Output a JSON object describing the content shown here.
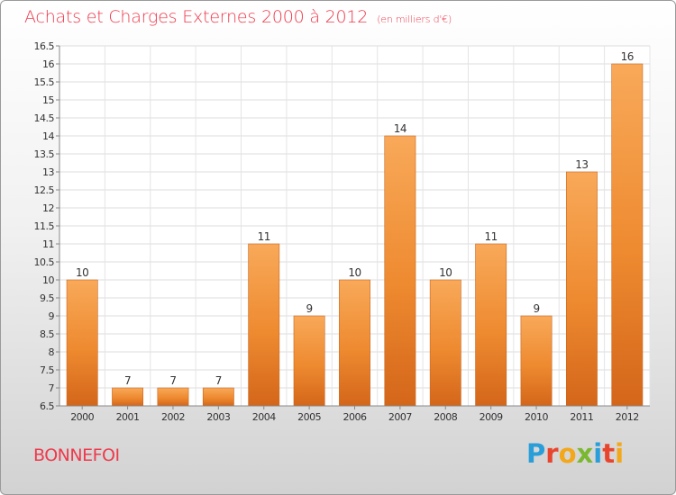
{
  "title": "Achats et Charges Externes 2000 à 2012",
  "unit": "(en milliers d'€)",
  "commune": "BONNEFOI",
  "brand": {
    "letters": [
      "P",
      "r",
      "o",
      "x",
      "i",
      "t",
      "i"
    ],
    "colors": [
      "#2a9ed8",
      "#e8452e",
      "#f3a71b",
      "#7bb832",
      "#2a9ed8",
      "#e8452e",
      "#f3a71b"
    ]
  },
  "chart_data": {
    "type": "bar",
    "categories": [
      "2000",
      "2001",
      "2002",
      "2003",
      "2004",
      "2005",
      "2006",
      "2007",
      "2008",
      "2009",
      "2010",
      "2011",
      "2012"
    ],
    "values": [
      10,
      7,
      7,
      7,
      11,
      9,
      10,
      14,
      10,
      11,
      9,
      13,
      16
    ],
    "data_labels": [
      "10",
      "7",
      "7",
      "7",
      "11",
      "9",
      "10",
      "14",
      "10",
      "11",
      "9",
      "13",
      "16"
    ],
    "y_ticks": [
      "6.5",
      "7",
      "7.5",
      "8",
      "8.5",
      "9",
      "9.5",
      "10",
      "10.5",
      "11",
      "11.5",
      "12",
      "12.5",
      "13",
      "13.5",
      "14",
      "14.5",
      "15",
      "15.5",
      "16",
      "16.5"
    ],
    "ylim": [
      6.5,
      16.5
    ],
    "grid": true,
    "bar_color": "#ee8a30",
    "bar_color_light": "#f8a959",
    "bar_color_dark": "#d4661a"
  }
}
